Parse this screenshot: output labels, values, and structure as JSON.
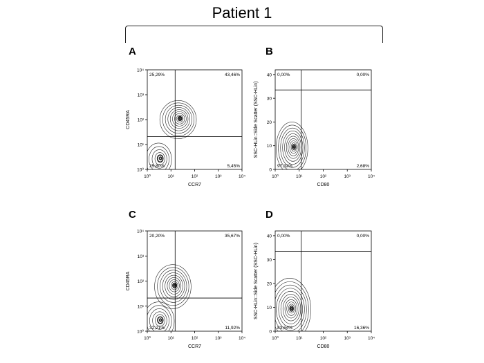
{
  "title": "Patient 1",
  "chart_data": [
    {
      "panel": "A",
      "type": "contour",
      "xlabel": "CCR7",
      "ylabel": "CD45RA",
      "xscale": "log",
      "yscale": "log",
      "xlim": [
        1,
        10000
      ],
      "ylim": [
        1,
        10000
      ],
      "x_ticks": [
        "10⁰",
        "10¹",
        "10²",
        "10³",
        "10⁴"
      ],
      "y_ticks": [
        "10⁰",
        "10¹",
        "10²",
        "10³",
        "10⁴"
      ],
      "gate": {
        "x": 15,
        "y": 21
      },
      "quadrants": {
        "upper_left": "25,29%",
        "upper_right": "43,46%",
        "lower_left": "25,80%",
        "lower_right": "5,45%"
      },
      "populations": [
        {
          "x": 20,
          "y": 100,
          "sx": 0.35,
          "sy": 0.35,
          "rings": 10
        },
        {
          "x": 3,
          "y": 2.5,
          "sx": 0.25,
          "sy": 0.3,
          "rings": 6
        }
      ]
    },
    {
      "panel": "B",
      "type": "contour",
      "xlabel": "CD80",
      "ylabel": "SSC-HLin::Side Scatter (SSC-HLin)",
      "xscale": "log",
      "yscale": "linear",
      "xlim": [
        1,
        10000
      ],
      "ylim": [
        0,
        42
      ],
      "x_ticks": [
        "10⁰",
        "10¹",
        "10²",
        "10³",
        "10⁴"
      ],
      "y_ticks": [
        "0",
        "10",
        "20",
        "30",
        "40"
      ],
      "gate": {
        "x": 12,
        "y": 33.5
      },
      "quadrants": {
        "upper_left": "0,00%",
        "upper_right": "0,00%",
        "lower_left": "97,32%",
        "lower_right": "2,68%"
      },
      "populations": [
        {
          "x": 5,
          "y": 9,
          "sx": 0.3,
          "sy": 5,
          "rings": 11
        }
      ]
    },
    {
      "panel": "C",
      "type": "contour",
      "xlabel": "CCR7",
      "ylabel": "CD45RA",
      "xscale": "log",
      "yscale": "log",
      "xlim": [
        1,
        10000
      ],
      "ylim": [
        1,
        10000
      ],
      "x_ticks": [
        "10⁰",
        "10¹",
        "10²",
        "10³",
        "10⁴"
      ],
      "y_ticks": [
        "10⁰",
        "10¹",
        "10²",
        "10³",
        "10⁴"
      ],
      "gate": {
        "x": 15,
        "y": 21
      },
      "quadrants": {
        "upper_left": "20,20%",
        "upper_right": "35,67%",
        "lower_left": "32,21%",
        "lower_right": "11,92%"
      },
      "populations": [
        {
          "x": 12,
          "y": 60,
          "sx": 0.35,
          "sy": 0.4,
          "rings": 10
        },
        {
          "x": 3,
          "y": 2.5,
          "sx": 0.3,
          "sy": 0.35,
          "rings": 7
        }
      ]
    },
    {
      "panel": "D",
      "type": "contour",
      "xlabel": "CD80",
      "ylabel": "SSC-HLin::Side Scatter (SSC-HLin)",
      "xscale": "log",
      "yscale": "linear",
      "xlim": [
        1,
        10000
      ],
      "ylim": [
        0,
        42
      ],
      "x_ticks": [
        "10⁰",
        "10¹",
        "10²",
        "10³",
        "10⁴"
      ],
      "y_ticks": [
        "0",
        "10",
        "20",
        "30",
        "40"
      ],
      "gate": {
        "x": 12,
        "y": 33.5
      },
      "quadrants": {
        "upper_left": "0,00%",
        "upper_right": "0,00%",
        "lower_left": "83,64%",
        "lower_right": "16,36%"
      },
      "populations": [
        {
          "x": 4,
          "y": 9,
          "sx": 0.4,
          "sy": 6,
          "rings": 12
        }
      ]
    }
  ]
}
